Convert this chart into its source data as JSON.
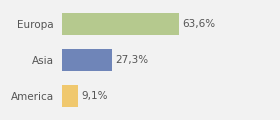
{
  "categories": [
    "Europa",
    "Asia",
    "America"
  ],
  "values": [
    63.6,
    27.3,
    9.1
  ],
  "labels": [
    "63,6%",
    "27,3%",
    "9,1%"
  ],
  "bar_colors": [
    "#b5c98e",
    "#6f85b8",
    "#f0c86e"
  ],
  "background_color": "#f2f2f2",
  "xlim": [
    0,
    100
  ],
  "label_fontsize": 7.5,
  "category_fontsize": 7.5,
  "bar_height": 0.62
}
